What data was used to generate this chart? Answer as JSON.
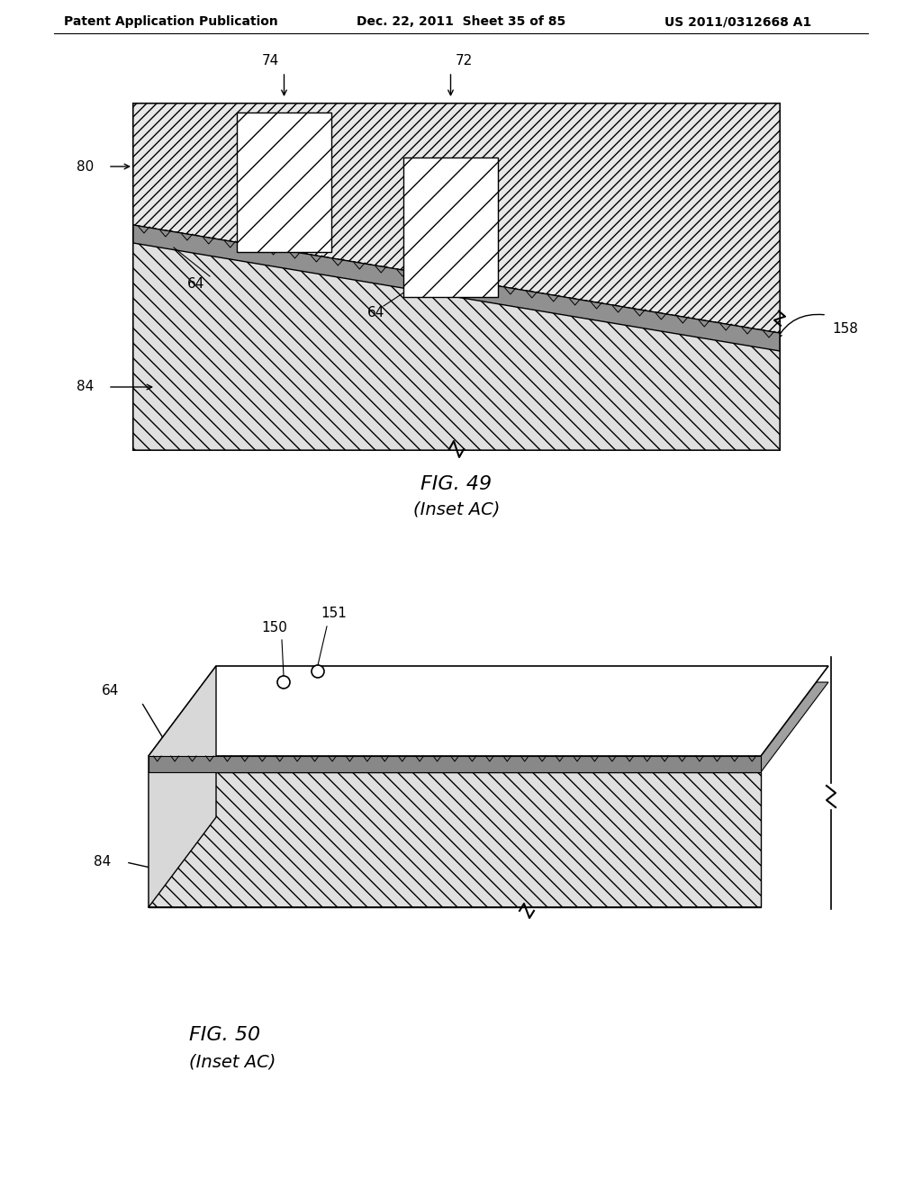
{
  "header_left": "Patent Application Publication",
  "header_mid": "Dec. 22, 2011  Sheet 35 of 85",
  "header_right": "US 2011/0312668 A1",
  "fig1_caption": "FIG. 49",
  "fig1_sub": "(Inset AC)",
  "fig2_caption": "FIG. 50",
  "fig2_sub": "(Inset AC)",
  "bg_color": "#ffffff",
  "line_color": "#000000"
}
